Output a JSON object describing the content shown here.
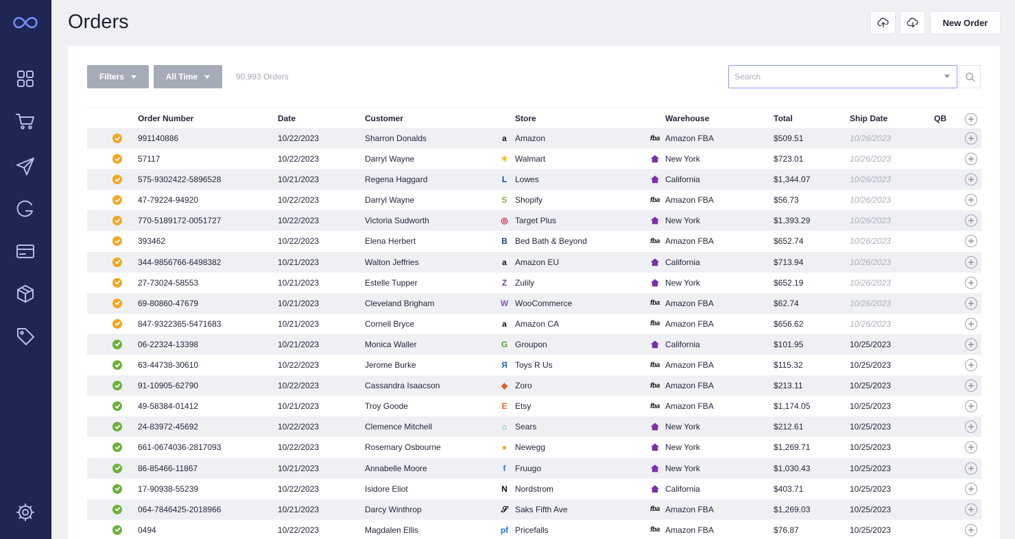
{
  "app": {
    "logo_icon": "infinity-logo-icon"
  },
  "sidebar": {
    "items": [
      {
        "name": "dashboard",
        "icon": "grid-icon"
      },
      {
        "name": "orders",
        "icon": "cart-icon"
      },
      {
        "name": "shipping",
        "icon": "send-icon"
      },
      {
        "name": "integrations",
        "icon": "g-icon"
      },
      {
        "name": "payments",
        "icon": "card-icon"
      },
      {
        "name": "products",
        "icon": "box-icon"
      },
      {
        "name": "tags",
        "icon": "tag-icon"
      }
    ],
    "settings_icon": "gear-icon"
  },
  "header": {
    "title": "Orders",
    "upload_icon": "cloud-upload-icon",
    "download_icon": "cloud-download-icon",
    "new_order_label": "New Order"
  },
  "controls": {
    "filters_label": "Filters",
    "time_label": "All Time",
    "orders_count": "90,993 Orders",
    "search_placeholder": "Search"
  },
  "colors": {
    "sidebar": "#1f2654",
    "pending": "#f5a623",
    "shipped": "#6cb23a",
    "warehouse_house": "#7b2fa8"
  },
  "table": {
    "columns": [
      "Order Number",
      "Date",
      "Customer",
      "Store",
      "Warehouse",
      "Total",
      "Ship Date",
      "QB"
    ],
    "rows": [
      {
        "status": "pending",
        "order": "991140886",
        "date": "10/22/2023",
        "customer": "Sharron Donalds",
        "store": "Amazon",
        "logo": "a",
        "logo_color": "#111111",
        "warehouse": "Amazon FBA",
        "wh": "fba",
        "total": "$509.51",
        "ship": "10/26/2023"
      },
      {
        "status": "pending",
        "order": "57117",
        "date": "10/22/2023",
        "customer": "Darryl Wayne",
        "store": "Walmart",
        "logo": "✳",
        "logo_color": "#f5b50a",
        "warehouse": "New York",
        "wh": "house",
        "total": "$723.01",
        "ship": "10/26/2023"
      },
      {
        "status": "pending",
        "order": "575-9302422-5896528",
        "date": "10/21/2023",
        "customer": "Regena Haggard",
        "store": "Lowes",
        "logo": "L",
        "logo_color": "#0c4a9e",
        "warehouse": "California",
        "wh": "house",
        "total": "$1,344.07",
        "ship": "10/26/2023"
      },
      {
        "status": "pending",
        "order": "47-79224-94920",
        "date": "10/22/2023",
        "customer": "Darryl Wayne",
        "store": "Shopify",
        "logo": "S",
        "logo_color": "#7cb342",
        "warehouse": "Amazon FBA",
        "wh": "fba",
        "total": "$56.73",
        "ship": "10/26/2023"
      },
      {
        "status": "pending",
        "order": "770-5189172-0051727",
        "date": "10/22/2023",
        "customer": "Victoria Sudworth",
        "store": "Target Plus",
        "logo": "◎",
        "logo_color": "#cc1f2f",
        "warehouse": "New York",
        "wh": "house",
        "total": "$1,393.29",
        "ship": "10/26/2023"
      },
      {
        "status": "pending",
        "order": "393462",
        "date": "10/22/2023",
        "customer": "Elena Herbert",
        "store": "Bed Bath & Beyond",
        "logo": "B",
        "logo_color": "#1b3d8f",
        "warehouse": "Amazon FBA",
        "wh": "fba",
        "total": "$652.74",
        "ship": "10/26/2023"
      },
      {
        "status": "pending",
        "order": "344-9856766-6498382",
        "date": "10/21/2023",
        "customer": "Walton Jeffries",
        "store": "Amazon EU",
        "logo": "a",
        "logo_color": "#111111",
        "warehouse": "California",
        "wh": "house",
        "total": "$713.94",
        "ship": "10/26/2023"
      },
      {
        "status": "pending",
        "order": "27-73024-58553",
        "date": "10/21/2023",
        "customer": "Estelle Tupper",
        "store": "Zulily",
        "logo": "Z",
        "logo_color": "#6d3ba6",
        "warehouse": "New York",
        "wh": "house",
        "total": "$652.19",
        "ship": "10/26/2023"
      },
      {
        "status": "pending",
        "order": "69-80860-47679",
        "date": "10/21/2023",
        "customer": "Cleveland Brigham",
        "store": "WooCommerce",
        "logo": "W",
        "logo_color": "#7f54b3",
        "warehouse": "Amazon FBA",
        "wh": "fba",
        "total": "$62.74",
        "ship": "10/26/2023"
      },
      {
        "status": "pending",
        "order": "847-9322365-5471683",
        "date": "10/21/2023",
        "customer": "Cornell Bryce",
        "store": "Amazon CA",
        "logo": "a",
        "logo_color": "#111111",
        "warehouse": "Amazon FBA",
        "wh": "fba",
        "total": "$656.62",
        "ship": "10/26/2023"
      },
      {
        "status": "shipped",
        "order": "06-22324-13398",
        "date": "10/21/2023",
        "customer": "Monica Waller",
        "store": "Groupon",
        "logo": "G",
        "logo_color": "#53a318",
        "warehouse": "California",
        "wh": "house",
        "total": "$101.95",
        "ship": "10/25/2023"
      },
      {
        "status": "shipped",
        "order": "63-44738-30610",
        "date": "10/22/2023",
        "customer": "Jerome Burke",
        "store": "Toys R Us",
        "logo": "Я",
        "logo_color": "#1d62b6",
        "warehouse": "Amazon FBA",
        "wh": "fba",
        "total": "$115.32",
        "ship": "10/25/2023"
      },
      {
        "status": "shipped",
        "order": "91-10905-62790",
        "date": "10/22/2023",
        "customer": "Cassandra Isaacson",
        "store": "Zoro",
        "logo": "◆",
        "logo_color": "#e25c1b",
        "warehouse": "Amazon FBA",
        "wh": "fba",
        "total": "$213.11",
        "ship": "10/25/2023"
      },
      {
        "status": "shipped",
        "order": "49-58384-01412",
        "date": "10/21/2023",
        "customer": "Troy Goode",
        "store": "Etsy",
        "logo": "E",
        "logo_color": "#f1641e",
        "warehouse": "Amazon FBA",
        "wh": "fba",
        "total": "$1,174.05",
        "ship": "10/25/2023"
      },
      {
        "status": "shipped",
        "order": "24-83972-45692",
        "date": "10/22/2023",
        "customer": "Clemence Mitchell",
        "store": "Sears",
        "logo": "⌂",
        "logo_color": "#2aa6a0",
        "warehouse": "New York",
        "wh": "house",
        "total": "$212.61",
        "ship": "10/25/2023"
      },
      {
        "status": "shipped",
        "order": "661-0674036-2817093",
        "date": "10/22/2023",
        "customer": "Rosemary Osbourne",
        "store": "Newegg",
        "logo": "●",
        "logo_color": "#f7a21b",
        "warehouse": "New York",
        "wh": "house",
        "total": "$1,269.71",
        "ship": "10/25/2023"
      },
      {
        "status": "shipped",
        "order": "86-85466-11867",
        "date": "10/21/2023",
        "customer": "Annabelle Moore",
        "store": "Fruugo",
        "logo": "f",
        "logo_color": "#1f7fd3",
        "warehouse": "New York",
        "wh": "house",
        "total": "$1,030.43",
        "ship": "10/25/2023"
      },
      {
        "status": "shipped",
        "order": "17-90938-55239",
        "date": "10/22/2023",
        "customer": "Isidore Eliot",
        "store": "Nordstrom",
        "logo": "N",
        "logo_color": "#111111",
        "warehouse": "California",
        "wh": "house",
        "total": "$403.71",
        "ship": "10/25/2023"
      },
      {
        "status": "shipped",
        "order": "064-7846425-2018966",
        "date": "10/21/2023",
        "customer": "Darcy Winthrop",
        "store": "Saks Fifth Ave",
        "logo": "𝒮",
        "logo_color": "#111111",
        "warehouse": "Amazon FBA",
        "wh": "fba",
        "total": "$1,269.03",
        "ship": "10/25/2023"
      },
      {
        "status": "shipped",
        "order": "0494",
        "date": "10/22/2023",
        "customer": "Magdalen Ellis",
        "store": "Pricefalls",
        "logo": "pf",
        "logo_color": "#1a73e8",
        "warehouse": "Amazon FBA",
        "wh": "fba",
        "total": "$76.87",
        "ship": "10/25/2023"
      }
    ]
  }
}
